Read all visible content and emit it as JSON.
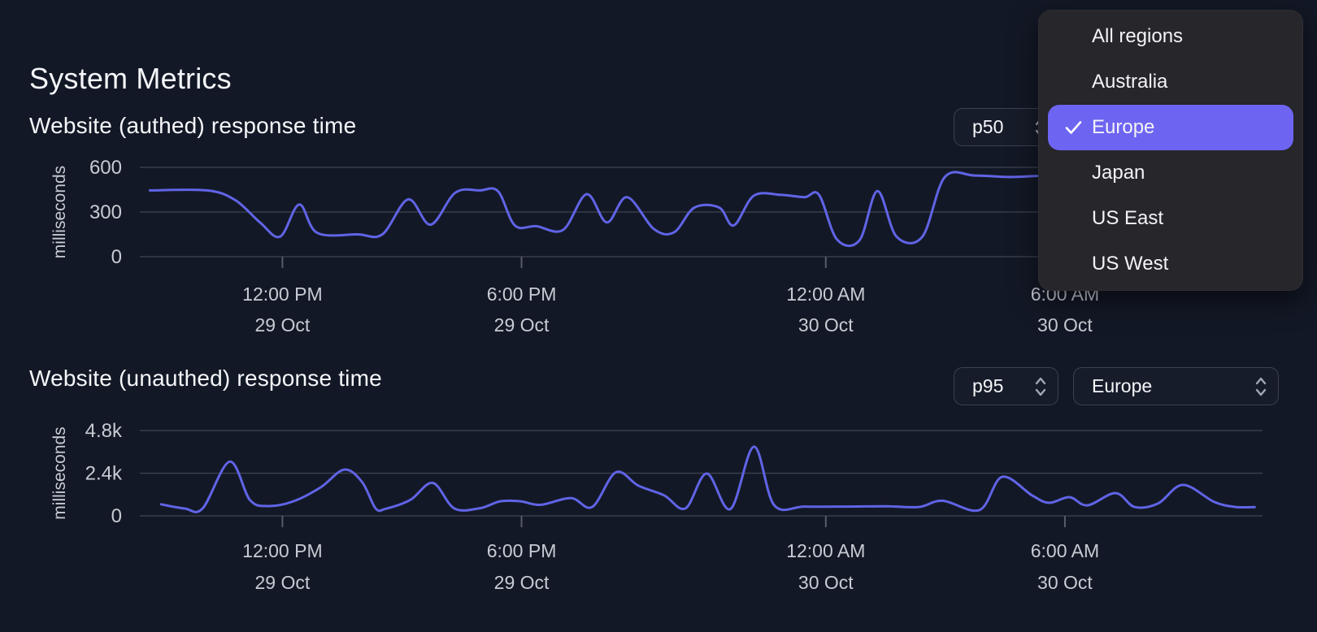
{
  "page": {
    "title": "System Metrics"
  },
  "colors": {
    "background": "#131826",
    "line": "#6064e6",
    "grid": "#3e4450",
    "tick_mark": "#565c68",
    "tick_text": "#c7cbd3",
    "menu_bg": "#26262b",
    "menu_selected_bg": "#6e64f2",
    "select_border": "#3b4252",
    "chevron": "#a2a8b4"
  },
  "region_menu": {
    "items": [
      {
        "label": "All regions",
        "selected": false
      },
      {
        "label": "Australia",
        "selected": false
      },
      {
        "label": "Europe",
        "selected": true
      },
      {
        "label": "Japan",
        "selected": false
      },
      {
        "label": "US East",
        "selected": false
      },
      {
        "label": "US West",
        "selected": false
      }
    ]
  },
  "chart_data": [
    {
      "type": "line",
      "title": "Website (authed) response time",
      "percentile_select": {
        "value": "p50"
      },
      "ylabel": "milliseconds",
      "ylim": [
        0,
        600
      ],
      "grid": true,
      "yticks": [
        {
          "label": "600",
          "value": 600
        },
        {
          "label": "300",
          "value": 300
        },
        {
          "label": "0",
          "value": 0
        }
      ],
      "xticks": [
        {
          "time": "12:00 PM",
          "date": "29 Oct",
          "pos": 0.127
        },
        {
          "time": "6:00 PM",
          "date": "29 Oct",
          "pos": 0.34
        },
        {
          "time": "12:00 AM",
          "date": "30 Oct",
          "pos": 0.611
        },
        {
          "time": "6:00 AM",
          "date": "30 Oct",
          "pos": 0.824
        }
      ],
      "series": [
        {
          "name": "Europe p50",
          "unit": "ms",
          "x_unit": "fraction of visible time range",
          "points": [
            [
              0.009,
              445
            ],
            [
              0.06,
              445
            ],
            [
              0.085,
              380
            ],
            [
              0.107,
              230
            ],
            [
              0.125,
              135
            ],
            [
              0.142,
              350
            ],
            [
              0.158,
              160
            ],
            [
              0.194,
              150
            ],
            [
              0.216,
              150
            ],
            [
              0.239,
              385
            ],
            [
              0.259,
              215
            ],
            [
              0.281,
              430
            ],
            [
              0.303,
              445
            ],
            [
              0.319,
              440
            ],
            [
              0.334,
              210
            ],
            [
              0.353,
              205
            ],
            [
              0.377,
              180
            ],
            [
              0.398,
              420
            ],
            [
              0.416,
              230
            ],
            [
              0.434,
              400
            ],
            [
              0.458,
              185
            ],
            [
              0.476,
              165
            ],
            [
              0.494,
              330
            ],
            [
              0.516,
              330
            ],
            [
              0.529,
              210
            ],
            [
              0.547,
              410
            ],
            [
              0.571,
              415
            ],
            [
              0.592,
              400
            ],
            [
              0.605,
              415
            ],
            [
              0.621,
              115
            ],
            [
              0.641,
              110
            ],
            [
              0.657,
              440
            ],
            [
              0.674,
              135
            ],
            [
              0.697,
              135
            ],
            [
              0.717,
              535
            ],
            [
              0.744,
              545
            ],
            [
              0.777,
              535
            ],
            [
              0.81,
              545
            ],
            [
              0.853,
              540
            ],
            [
              0.904,
              545
            ],
            [
              0.954,
              535
            ],
            [
              0.993,
              540
            ]
          ]
        }
      ]
    },
    {
      "type": "line",
      "title": "Website (unauthed) response time",
      "percentile_select": {
        "value": "p95"
      },
      "region_select": {
        "value": "Europe"
      },
      "ylabel": "milliseconds",
      "ylim": [
        0,
        4800
      ],
      "grid": true,
      "yticks": [
        {
          "label": "4.8k",
          "value": 4800
        },
        {
          "label": "2.4k",
          "value": 2400
        },
        {
          "label": "0",
          "value": 0
        }
      ],
      "xticks": [
        {
          "time": "12:00 PM",
          "date": "29 Oct",
          "pos": 0.127
        },
        {
          "time": "6:00 PM",
          "date": "29 Oct",
          "pos": 0.34
        },
        {
          "time": "12:00 AM",
          "date": "30 Oct",
          "pos": 0.611
        },
        {
          "time": "6:00 AM",
          "date": "30 Oct",
          "pos": 0.824
        }
      ],
      "series": [
        {
          "name": "Europe p95",
          "unit": "ms",
          "x_unit": "fraction of visible time range",
          "points": [
            [
              0.019,
              650
            ],
            [
              0.04,
              410
            ],
            [
              0.056,
              420
            ],
            [
              0.08,
              3050
            ],
            [
              0.098,
              900
            ],
            [
              0.114,
              550
            ],
            [
              0.136,
              800
            ],
            [
              0.161,
              1600
            ],
            [
              0.182,
              2600
            ],
            [
              0.198,
              1900
            ],
            [
              0.21,
              420
            ],
            [
              0.219,
              400
            ],
            [
              0.241,
              900
            ],
            [
              0.261,
              1850
            ],
            [
              0.28,
              420
            ],
            [
              0.303,
              430
            ],
            [
              0.321,
              820
            ],
            [
              0.339,
              820
            ],
            [
              0.357,
              620
            ],
            [
              0.384,
              1000
            ],
            [
              0.403,
              500
            ],
            [
              0.424,
              2450
            ],
            [
              0.444,
              1700
            ],
            [
              0.467,
              1150
            ],
            [
              0.486,
              420
            ],
            [
              0.505,
              2380
            ],
            [
              0.526,
              380
            ],
            [
              0.547,
              3890
            ],
            [
              0.565,
              600
            ],
            [
              0.592,
              520
            ],
            [
              0.628,
              520
            ],
            [
              0.665,
              540
            ],
            [
              0.694,
              500
            ],
            [
              0.715,
              850
            ],
            [
              0.748,
              330
            ],
            [
              0.768,
              2190
            ],
            [
              0.795,
              1140
            ],
            [
              0.81,
              730
            ],
            [
              0.828,
              1050
            ],
            [
              0.844,
              590
            ],
            [
              0.869,
              1280
            ],
            [
              0.886,
              500
            ],
            [
              0.907,
              700
            ],
            [
              0.929,
              1740
            ],
            [
              0.957,
              780
            ],
            [
              0.976,
              500
            ],
            [
              0.993,
              490
            ]
          ]
        }
      ]
    }
  ]
}
